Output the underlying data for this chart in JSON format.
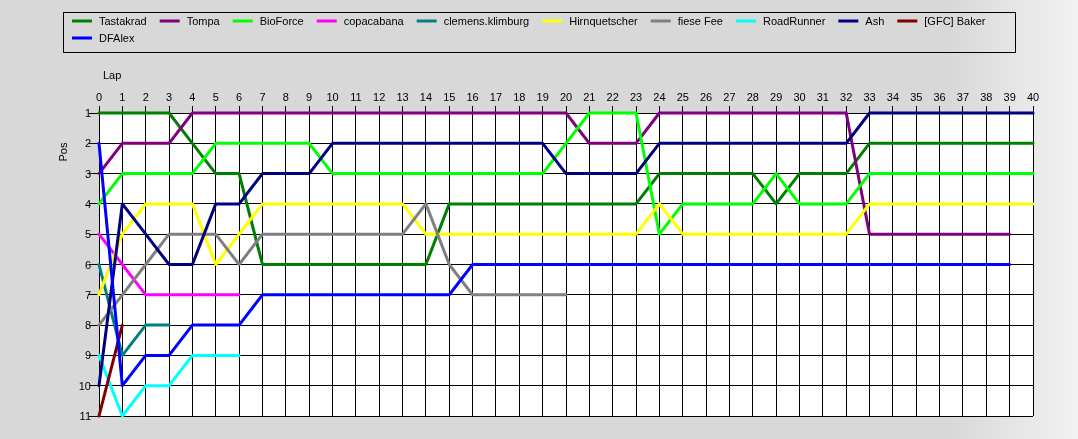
{
  "chart_data": {
    "type": "line",
    "xlabel": "Lap",
    "ylabel": "Pos",
    "x": [
      0,
      1,
      2,
      3,
      4,
      5,
      6,
      7,
      8,
      9,
      10,
      11,
      12,
      13,
      14,
      15,
      16,
      17,
      18,
      19,
      20,
      21,
      22,
      23,
      24,
      25,
      26,
      27,
      28,
      29,
      30,
      31,
      32,
      33,
      34,
      35,
      36,
      37,
      38,
      39,
      40
    ],
    "xlim": [
      0,
      40
    ],
    "xticks": [
      0,
      1,
      2,
      3,
      4,
      5,
      6,
      7,
      8,
      9,
      10,
      11,
      12,
      13,
      14,
      15,
      16,
      17,
      18,
      19,
      20,
      21,
      22,
      23,
      24,
      25,
      26,
      27,
      28,
      29,
      30,
      31,
      32,
      33,
      34,
      35,
      36,
      37,
      38,
      39,
      40
    ],
    "ylim": [
      11,
      1
    ],
    "yticks": [
      1,
      2,
      3,
      4,
      5,
      6,
      7,
      8,
      9,
      10,
      11
    ],
    "grid": true,
    "legend": "top",
    "series": [
      {
        "name": "Tastakrad",
        "color": "#008000",
        "values": [
          1,
          1,
          1,
          1,
          2,
          3,
          3,
          6,
          6,
          6,
          6,
          6,
          6,
          6,
          6,
          4,
          4,
          4,
          4,
          4,
          4,
          4,
          4,
          4,
          3,
          3,
          3,
          3,
          3,
          4,
          3,
          3,
          3,
          2,
          2,
          2,
          2,
          2,
          2,
          2,
          2
        ]
      },
      {
        "name": "Tompa",
        "color": "#800080",
        "values": [
          3,
          2,
          2,
          2,
          1,
          1,
          1,
          1,
          1,
          1,
          1,
          1,
          1,
          1,
          1,
          1,
          1,
          1,
          1,
          1,
          1,
          2,
          2,
          2,
          1,
          1,
          1,
          1,
          1,
          1,
          1,
          1,
          1,
          5,
          5,
          5,
          5,
          5,
          5,
          5,
          null
        ]
      },
      {
        "name": "BioForce",
        "color": "#00ff00",
        "values": [
          4,
          3,
          3,
          3,
          3,
          2,
          2,
          2,
          2,
          2,
          3,
          3,
          3,
          3,
          3,
          3,
          3,
          3,
          3,
          3,
          2,
          1,
          1,
          1,
          5,
          4,
          4,
          4,
          4,
          3,
          4,
          4,
          4,
          3,
          3,
          3,
          3,
          3,
          3,
          3,
          3
        ]
      },
      {
        "name": "copacabana",
        "color": "#ff00ff",
        "values": [
          5,
          6,
          7,
          7,
          7,
          7,
          7,
          null,
          null,
          null,
          null,
          null,
          null,
          null,
          null,
          null,
          null,
          null,
          null,
          null,
          null,
          null,
          null,
          null,
          null,
          null,
          null,
          null,
          null,
          null,
          null,
          null,
          null,
          null,
          null,
          null,
          null,
          null,
          null,
          null,
          null
        ]
      },
      {
        "name": "clemens.klimburg",
        "color": "#008080",
        "values": [
          6,
          9,
          8,
          8,
          null,
          null,
          null,
          null,
          null,
          null,
          null,
          null,
          null,
          null,
          null,
          null,
          null,
          null,
          null,
          null,
          null,
          null,
          null,
          null,
          null,
          null,
          null,
          null,
          null,
          null,
          null,
          null,
          null,
          null,
          null,
          null,
          null,
          null,
          null,
          null,
          null
        ]
      },
      {
        "name": "Hirnquetscher",
        "color": "#ffff00",
        "values": [
          7,
          5,
          4,
          4,
          4,
          6,
          5,
          4,
          4,
          4,
          4,
          4,
          4,
          4,
          5,
          5,
          5,
          5,
          5,
          5,
          5,
          5,
          5,
          5,
          4,
          5,
          5,
          5,
          5,
          5,
          5,
          5,
          5,
          4,
          4,
          4,
          4,
          4,
          4,
          4,
          4
        ]
      },
      {
        "name": "fiese Fee",
        "color": "#808080",
        "values": [
          8,
          7,
          6,
          5,
          5,
          5,
          6,
          5,
          5,
          5,
          5,
          5,
          5,
          5,
          4,
          6,
          7,
          7,
          7,
          7,
          7,
          null,
          null,
          null,
          null,
          null,
          null,
          null,
          null,
          null,
          null,
          null,
          null,
          null,
          null,
          null,
          null,
          null,
          null,
          null,
          null
        ]
      },
      {
        "name": "RoadRunner",
        "color": "#00ffff",
        "values": [
          9,
          11,
          10,
          10,
          9,
          9,
          9,
          null,
          null,
          null,
          null,
          null,
          null,
          null,
          null,
          null,
          null,
          null,
          null,
          null,
          null,
          null,
          null,
          null,
          null,
          null,
          null,
          null,
          null,
          null,
          null,
          null,
          null,
          null,
          null,
          null,
          null,
          null,
          null,
          null,
          null
        ]
      },
      {
        "name": "Ash",
        "color": "#000080",
        "values": [
          10,
          4,
          5,
          6,
          6,
          4,
          4,
          3,
          3,
          3,
          2,
          2,
          2,
          2,
          2,
          2,
          2,
          2,
          2,
          2,
          3,
          3,
          3,
          3,
          2,
          2,
          2,
          2,
          2,
          2,
          2,
          2,
          2,
          1,
          1,
          1,
          1,
          1,
          1,
          1,
          1
        ]
      },
      {
        "name": "[GFC] Baker",
        "color": "#800000",
        "values": [
          11,
          8,
          null,
          null,
          null,
          null,
          null,
          null,
          null,
          null,
          null,
          null,
          null,
          null,
          null,
          null,
          null,
          null,
          null,
          null,
          null,
          null,
          null,
          null,
          null,
          null,
          null,
          null,
          null,
          null,
          null,
          null,
          null,
          null,
          null,
          null,
          null,
          null,
          null,
          null,
          null
        ]
      },
      {
        "name": "DFAlex",
        "color": "#0000ff",
        "values": [
          2,
          10,
          9,
          9,
          8,
          8,
          8,
          7,
          7,
          7,
          7,
          7,
          7,
          7,
          7,
          7,
          6,
          6,
          6,
          6,
          6,
          6,
          6,
          6,
          6,
          6,
          6,
          6,
          6,
          6,
          6,
          6,
          6,
          6,
          6,
          6,
          6,
          6,
          6,
          6,
          null
        ]
      }
    ]
  }
}
